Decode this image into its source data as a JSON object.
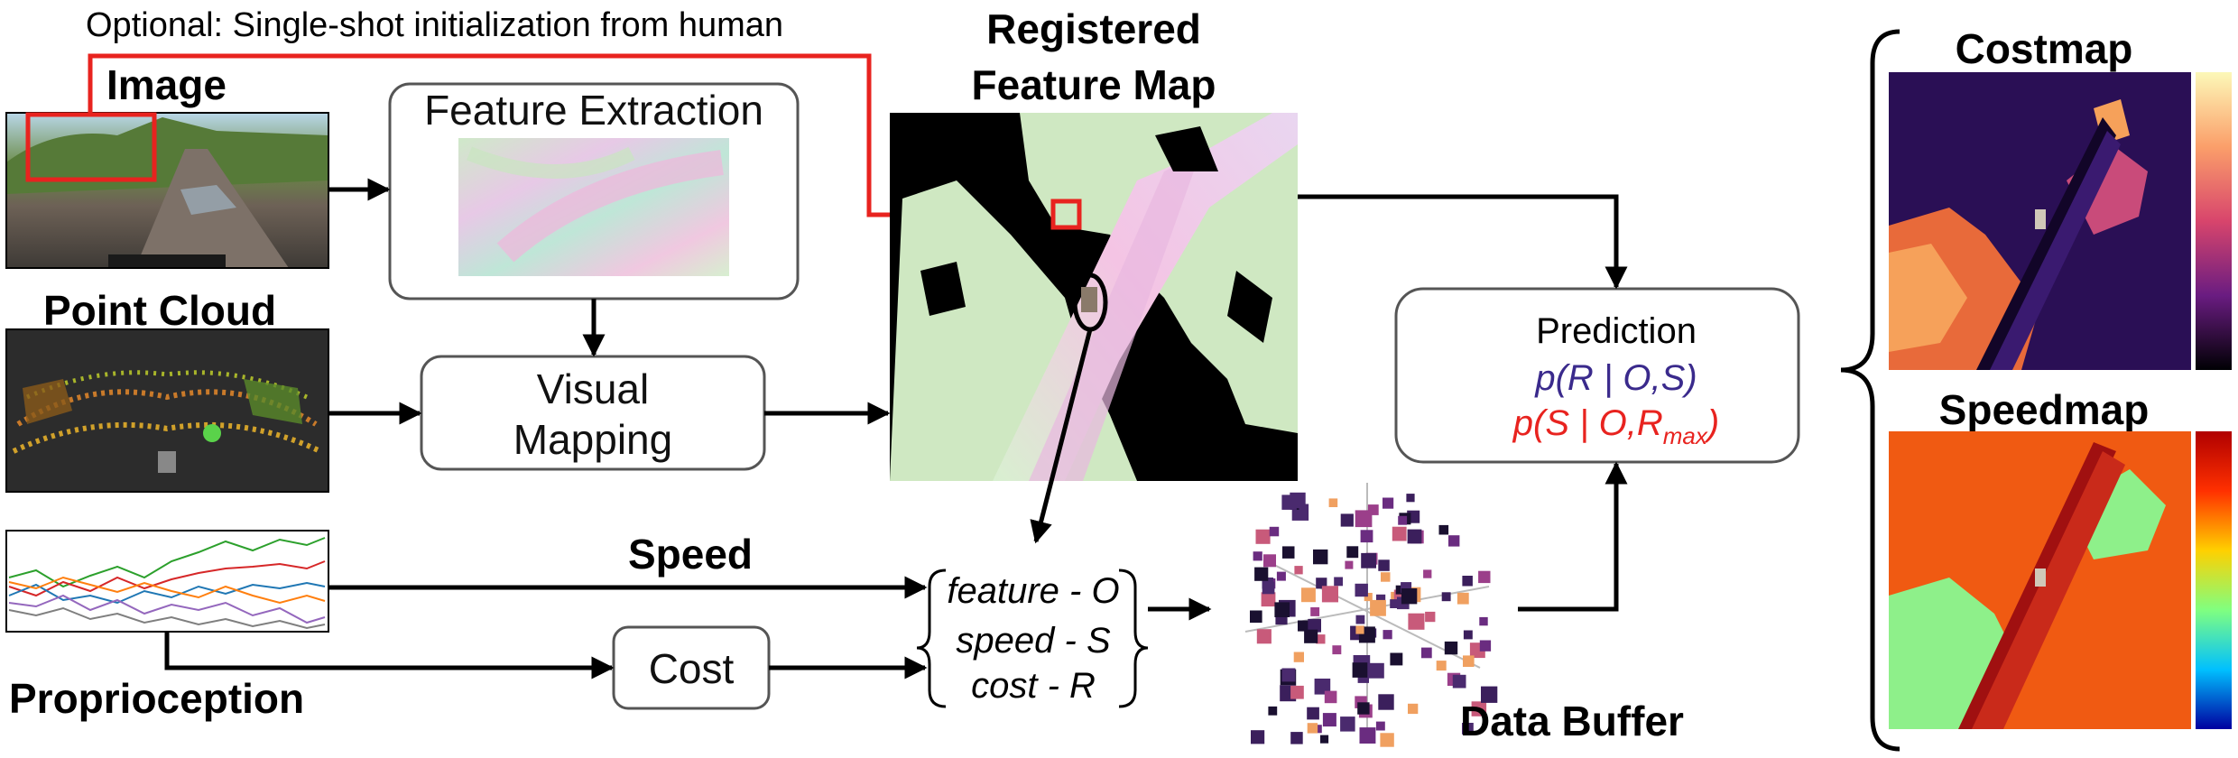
{
  "optional_note": "Optional: Single-shot initialization from human",
  "inputs": {
    "image_label": "Image",
    "point_cloud_label": "Point Cloud",
    "proprioception_label": "Proprioception"
  },
  "modules": {
    "feature_extraction": "Feature Extraction",
    "visual_mapping_line1": "Visual",
    "visual_mapping_line2": "Mapping",
    "cost": "Cost"
  },
  "feature_map": {
    "title_line1": "Registered",
    "title_line2": "Feature Map"
  },
  "speed_label": "Speed",
  "brace_items": {
    "feature_term": "feature",
    "feature_symbol": "O",
    "speed_term": "speed",
    "speed_symbol": "S",
    "cost_term": "cost",
    "cost_symbol": "R",
    "separator": "-"
  },
  "data_buffer_label": "Data Buffer",
  "prediction": {
    "title": "Prediction",
    "formula1": "p(R | O,S)",
    "formula2_main": "p(S | O,R",
    "formula2_sub": "max",
    "formula2_close": ")"
  },
  "outputs": {
    "costmap_label": "Costmap",
    "speedmap_label": "Speedmap"
  },
  "colors": {
    "red": "#e8231f",
    "navy": "#3a2a8c",
    "magma_dark": "#2a0f55",
    "magma_orange": "#f6a15a",
    "speed_orange": "#f05a12",
    "speed_green": "#8ef08a"
  }
}
